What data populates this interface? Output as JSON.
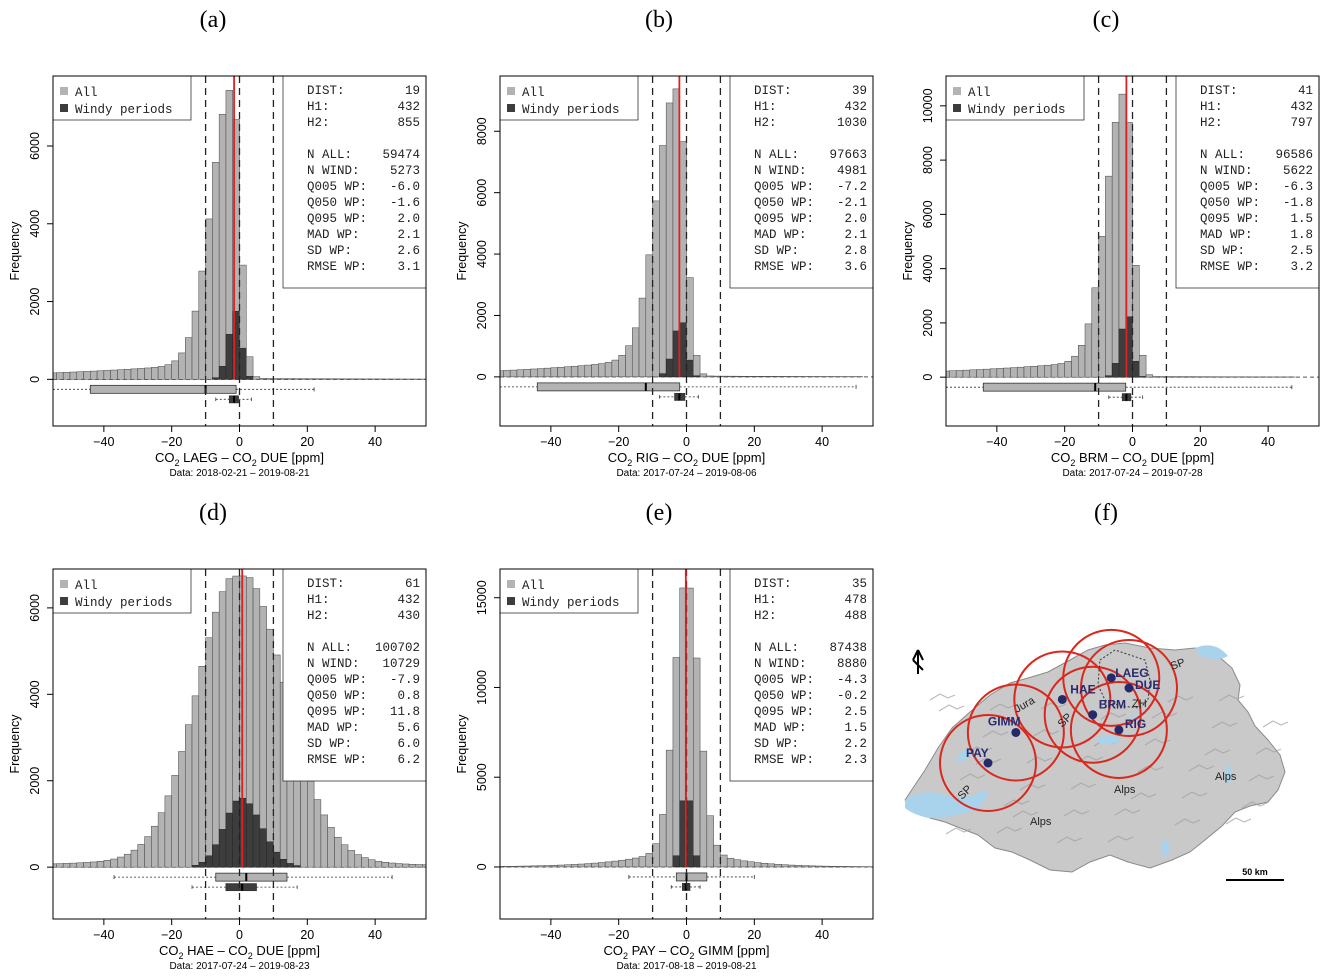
{
  "panel_labels": [
    "(a)",
    "(b)",
    "(c)",
    "(d)",
    "(e)",
    "(f)"
  ],
  "legend": {
    "all": "All",
    "windy": "Windy periods"
  },
  "colors": {
    "all": "#b3b3b3",
    "windy": "#3d3d3d",
    "median_line": "#e02020",
    "circle": "#d9281e",
    "water": "#a9d2ec",
    "station": "#262a6a"
  },
  "stats_keys": [
    "DIST:",
    "H1:",
    "H2:",
    "N ALL:",
    "N WIND:",
    "Q005 WP:",
    "Q050 WP:",
    "Q095 WP:",
    "MAD  WP:",
    "SD   WP:",
    "RMSE WP:"
  ],
  "chart_data": [
    {
      "type": "bar",
      "panel": "(a)",
      "xlabel": {
        "pre": "CO",
        "sub1": "2",
        "mid": " LAEG – CO",
        "sub2": "2",
        "post": " DUE [ppm]"
      },
      "subtitle": "Data: 2018-02-21 – 2019-08-21",
      "ylabel": "Frequency",
      "xlim": [
        -55,
        55
      ],
      "ylim": [
        -1200,
        7800
      ],
      "xticks": [
        -40,
        -20,
        0,
        20,
        40
      ],
      "yticks": [
        0,
        2000,
        4000,
        6000
      ],
      "bin_width": 2,
      "all_peak": 7400,
      "all_shape": {
        "center": -2,
        "left": 6,
        "right": 2.2,
        "tail_left": 0.065,
        "tail_decay": 0.02,
        "tail_right": 0.004
      },
      "windy_peak": 1750,
      "windy_shape": {
        "center": -1,
        "left": 2.2,
        "right": 1.6
      },
      "median": -1.6,
      "dashed": [
        -10,
        0,
        10
      ],
      "box_all": {
        "whisker": [
          -55,
          22
        ],
        "q": [
          -44,
          -10,
          -1
        ]
      },
      "box_wind": {
        "whisker": [
          -7,
          3.5
        ],
        "q": [
          -3,
          -1.6,
          -0.3
        ]
      },
      "stats": [
        "19",
        "432",
        "855",
        "59474",
        "5273",
        "-6.0",
        "-1.6",
        "2.0",
        "2.1",
        "2.6",
        "3.1"
      ]
    },
    {
      "type": "bar",
      "panel": "(b)",
      "xlabel": {
        "pre": "CO",
        "sub1": "2",
        "mid": " RIG – CO",
        "sub2": "2",
        "post": " DUE [ppm]"
      },
      "subtitle": "Data: 2017-07-24 – 2019-08-06",
      "ylabel": "Frequency",
      "xlim": [
        -55,
        55
      ],
      "ylim": [
        -1600,
        9800
      ],
      "xticks": [
        -40,
        -20,
        0,
        20,
        40
      ],
      "yticks": [
        0,
        2000,
        4000,
        6000,
        8000
      ],
      "bin_width": 2,
      "all_peak": 9300,
      "all_shape": {
        "center": -2.5,
        "left": 6,
        "right": 2.4,
        "tail_left": 0.08,
        "tail_decay": 0.025,
        "tail_right": 0.004
      },
      "windy_peak": 1850,
      "windy_shape": {
        "center": -1.5,
        "left": 2.3,
        "right": 1.6
      },
      "median": -2.1,
      "dashed": [
        -10,
        0,
        10
      ],
      "box_all": {
        "whisker": [
          -55,
          50
        ],
        "q": [
          -44,
          -12,
          -2
        ]
      },
      "box_wind": {
        "whisker": [
          -8,
          3.5
        ],
        "q": [
          -3.5,
          -2.1,
          -0.5
        ]
      },
      "stats": [
        "39",
        "432",
        "1030",
        "97663",
        "4981",
        "-7.2",
        "-2.1",
        "2.0",
        "2.1",
        "2.8",
        "3.6"
      ]
    },
    {
      "type": "bar",
      "panel": "(c)",
      "xlabel": {
        "pre": "CO",
        "sub1": "2",
        "mid": " BRM – CO",
        "sub2": "2",
        "post": " DUE [ppm]"
      },
      "subtitle": "Data: 2017-07-24 – 2019-07-28",
      "ylabel": "Frequency",
      "xlim": [
        -55,
        55
      ],
      "ylim": [
        -1800,
        11100
      ],
      "xticks": [
        -40,
        -20,
        0,
        20,
        40
      ],
      "yticks": [
        0,
        2000,
        4000,
        6000,
        8000,
        10000
      ],
      "bin_width": 2,
      "all_peak": 10400,
      "all_shape": {
        "center": -2,
        "left": 5.5,
        "right": 2.2,
        "tail_left": 0.07,
        "tail_decay": 0.022,
        "tail_right": 0.003
      },
      "windy_peak": 2350,
      "windy_shape": {
        "center": -1.5,
        "left": 2.0,
        "right": 1.5
      },
      "median": -1.8,
      "dashed": [
        -10,
        0,
        10
      ],
      "box_all": {
        "whisker": [
          -55,
          47
        ],
        "q": [
          -44,
          -11,
          -2
        ]
      },
      "box_wind": {
        "whisker": [
          -7,
          3
        ],
        "q": [
          -3,
          -1.8,
          -0.5
        ]
      },
      "stats": [
        "41",
        "432",
        "797",
        "96586",
        "5622",
        "-6.3",
        "-1.8",
        "1.5",
        "1.8",
        "2.5",
        "3.2"
      ]
    },
    {
      "type": "bar",
      "panel": "(d)",
      "xlabel": {
        "pre": "CO",
        "sub1": "2",
        "mid": " HAE – CO",
        "sub2": "2",
        "post": " DUE [ppm]"
      },
      "subtitle": "Data: 2017-07-24 – 2019-08-23",
      "ylabel": "Frequency",
      "xlim": [
        -55,
        55
      ],
      "ylim": [
        -1200,
        6900
      ],
      "xticks": [
        -40,
        -20,
        0,
        20,
        40
      ],
      "yticks": [
        0,
        2000,
        4000,
        6000
      ],
      "bin_width": 2,
      "all_peak": 6650,
      "all_shape": {
        "center": 0,
        "left": 12,
        "right": 13,
        "tail_left": 0.06,
        "tail_decay": 0.03,
        "tail_right": 0.06
      },
      "windy_peak": 1600,
      "windy_shape": {
        "center": 0.5,
        "left": 5,
        "right": 6
      },
      "median": 0.8,
      "dashed": [
        -10,
        0,
        10
      ],
      "box_all": {
        "whisker": [
          -37,
          45
        ],
        "q": [
          -7,
          2,
          14
        ]
      },
      "box_wind": {
        "whisker": [
          -14,
          17
        ],
        "q": [
          -4,
          0.8,
          5
        ]
      },
      "stats": [
        "61",
        "432",
        "430",
        "100702",
        "10729",
        "-7.9",
        "0.8",
        "11.8",
        "5.6",
        "6.0",
        "6.2"
      ]
    },
    {
      "type": "bar",
      "panel": "(e)",
      "xlabel": {
        "pre": "CO",
        "sub1": "2",
        "mid": " PAY – CO",
        "sub2": "2",
        "post": " GIMM [ppm]"
      },
      "subtitle": "Data: 2017-08-18 – 2019-08-21",
      "ylabel": "Frequency",
      "xlim": [
        -55,
        55
      ],
      "ylim": [
        -2900,
        16600
      ],
      "xticks": [
        -40,
        -20,
        0,
        20,
        40
      ],
      "yticks": [
        0,
        5000,
        10000,
        15000
      ],
      "bin_width": 2,
      "all_peak": 15800,
      "all_shape": {
        "center": 0,
        "left": 3.5,
        "right": 3.5,
        "tail_left": 0.09,
        "tail_decay": 0.07,
        "tail_right": 0.09
      },
      "windy_peak": 4600,
      "windy_shape": {
        "center": 0,
        "left": 1.5,
        "right": 1.5
      },
      "median": -0.2,
      "dashed": [
        -10,
        0,
        10
      ],
      "box_all": {
        "whisker": [
          -17,
          20
        ],
        "q": [
          -3,
          0,
          6
        ]
      },
      "box_wind": {
        "whisker": [
          -4.5,
          4
        ],
        "q": [
          -1.2,
          -0.2,
          1
        ]
      },
      "stats": [
        "35",
        "478",
        "488",
        "87438",
        "8880",
        "-4.3",
        "-0.2",
        "2.5",
        "1.5",
        "2.2",
        "2.3"
      ]
    }
  ],
  "map": {
    "scale_label": "50 km",
    "regions": [
      "Jura",
      "Alps",
      "Alps",
      "Alps"
    ],
    "sp_labels": [
      "SP",
      "SP",
      "SP"
    ],
    "zh_label": "ZH",
    "stations": [
      {
        "name": "PAY",
        "lon": 6.94,
        "lat": 46.81
      },
      {
        "name": "GIMM",
        "lon": 7.27,
        "lat": 47.05
      },
      {
        "name": "HAE",
        "lon": 7.82,
        "lat": 47.31
      },
      {
        "name": "BRM",
        "lon": 8.18,
        "lat": 47.19
      },
      {
        "name": "LAEG",
        "lon": 8.4,
        "lat": 47.48
      },
      {
        "name": "DUE",
        "lon": 8.61,
        "lat": 47.4
      },
      {
        "name": "RIG",
        "lon": 8.49,
        "lat": 47.07
      }
    ]
  }
}
